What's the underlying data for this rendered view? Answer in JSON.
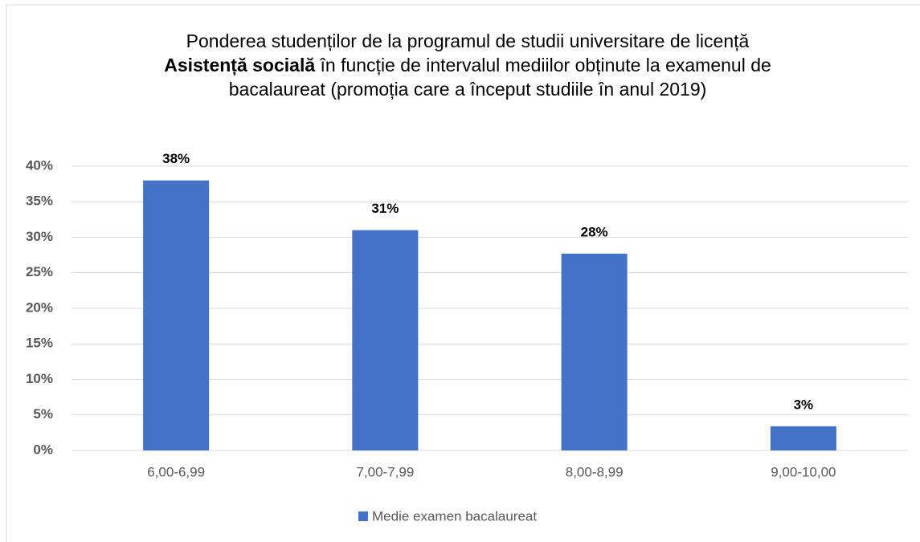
{
  "chart_data": {
    "type": "bar",
    "title_parts": [
      {
        "text": "Ponderea studenților de la programul de studii universitare de licență ",
        "bold": false
      },
      {
        "text": "Asistență socială",
        "bold": true
      },
      {
        "text": " în funcție de intervalul mediilor obținute la examenul de bacalaureat (promoția care a început studiile în anul 2019)",
        "bold": false
      }
    ],
    "categories": [
      "6,00-6,99",
      "7,00-7,99",
      "8,00-8,99",
      "9,00-10,00"
    ],
    "series": [
      {
        "name": "Medie examen bacalaureat",
        "color": "#4472c4",
        "values": [
          38,
          31,
          27.7,
          3.4
        ],
        "value_labels": [
          "38%",
          "31%",
          "28%",
          "3%"
        ]
      }
    ],
    "ylim": [
      0,
      40
    ],
    "yticks": [
      {
        "value": 0,
        "label": "0%"
      },
      {
        "value": 5,
        "label": "5%"
      },
      {
        "value": 10,
        "label": "10%"
      },
      {
        "value": 15,
        "label": "15%"
      },
      {
        "value": 20,
        "label": "20%"
      },
      {
        "value": 25,
        "label": "25%"
      },
      {
        "value": 30,
        "label": "30%"
      },
      {
        "value": 35,
        "label": "35%"
      },
      {
        "value": 40,
        "label": "40%"
      }
    ],
    "grid": true,
    "legend": "bottom"
  }
}
